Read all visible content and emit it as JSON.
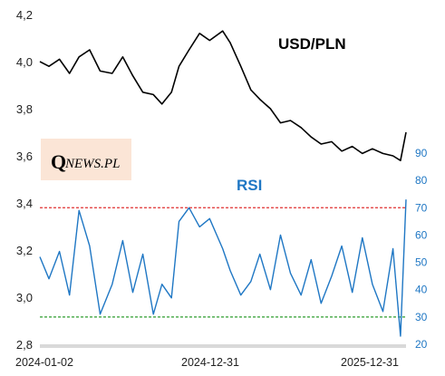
{
  "chart_data": [
    {
      "type": "line",
      "title": "USD/PLN",
      "axis": "left",
      "ylim": [
        2.8,
        4.2
      ],
      "yticks": [
        "2,8",
        "3,0",
        "3,2",
        "3,4",
        "3,6",
        "3,8",
        "4,0",
        "4,2"
      ],
      "xticks": [
        "2024-01-02",
        "2024-12-31",
        "2025-12-31"
      ],
      "x_range": [
        "2024-01-02",
        "2025-12-31"
      ],
      "grid": false,
      "color": "#000000",
      "series": [
        {
          "name": "USD/PLN",
          "x": [
            "2024-01-02",
            "2024-01-20",
            "2024-02-10",
            "2024-03-01",
            "2024-03-20",
            "2024-04-10",
            "2024-05-01",
            "2024-05-25",
            "2024-06-15",
            "2024-07-05",
            "2024-07-25",
            "2024-08-15",
            "2024-09-01",
            "2024-09-20",
            "2024-10-05",
            "2024-10-25",
            "2024-11-15",
            "2024-12-05",
            "2024-12-31",
            "2025-01-15",
            "2025-02-05",
            "2025-02-25",
            "2025-03-15",
            "2025-04-05",
            "2025-04-25",
            "2025-05-15",
            "2025-06-05",
            "2025-06-25",
            "2025-07-15",
            "2025-08-05",
            "2025-08-25",
            "2025-09-15",
            "2025-10-05",
            "2025-10-25",
            "2025-11-15",
            "2025-12-05",
            "2025-12-20",
            "2025-12-31"
          ],
          "values": [
            4.0,
            3.98,
            4.01,
            3.95,
            4.02,
            4.05,
            3.96,
            3.95,
            4.02,
            3.94,
            3.87,
            3.86,
            3.82,
            3.87,
            3.98,
            4.05,
            4.12,
            4.09,
            4.13,
            4.08,
            3.98,
            3.88,
            3.84,
            3.8,
            3.74,
            3.75,
            3.72,
            3.68,
            3.65,
            3.66,
            3.62,
            3.64,
            3.61,
            3.63,
            3.61,
            3.6,
            3.58,
            3.7
          ]
        }
      ]
    },
    {
      "type": "line",
      "title": "RSI",
      "axis": "right",
      "ylim": [
        20,
        95
      ],
      "yticks": [
        "20",
        "30",
        "40",
        "50",
        "60",
        "70",
        "80",
        "90"
      ],
      "grid": false,
      "color": "#1f77c4",
      "reference_lines": [
        {
          "value": 70,
          "color": "#e03030",
          "style": "dashed"
        },
        {
          "value": 30,
          "color": "#2e9e2e",
          "style": "dashed"
        }
      ],
      "series": [
        {
          "name": "RSI",
          "x": [
            "2024-01-02",
            "2024-01-20",
            "2024-02-10",
            "2024-03-01",
            "2024-03-20",
            "2024-04-10",
            "2024-05-01",
            "2024-05-25",
            "2024-06-15",
            "2024-07-05",
            "2024-07-25",
            "2024-08-15",
            "2024-09-01",
            "2024-09-20",
            "2024-10-05",
            "2024-10-25",
            "2024-11-15",
            "2024-12-05",
            "2024-12-31",
            "2025-01-15",
            "2025-02-05",
            "2025-02-25",
            "2025-03-15",
            "2025-04-05",
            "2025-04-25",
            "2025-05-15",
            "2025-06-05",
            "2025-06-25",
            "2025-07-15",
            "2025-08-05",
            "2025-08-25",
            "2025-09-15",
            "2025-10-05",
            "2025-10-25",
            "2025-11-15",
            "2025-12-05",
            "2025-12-20",
            "2025-12-31"
          ],
          "values": [
            52,
            44,
            54,
            38,
            69,
            56,
            31,
            42,
            58,
            39,
            53,
            31,
            42,
            37,
            65,
            70,
            63,
            66,
            55,
            47,
            38,
            43,
            53,
            40,
            60,
            46,
            38,
            51,
            35,
            45,
            56,
            39,
            59,
            42,
            32,
            55,
            23,
            73
          ]
        }
      ]
    }
  ],
  "logo": {
    "q": "Q",
    "text": "NEWS.PL"
  }
}
